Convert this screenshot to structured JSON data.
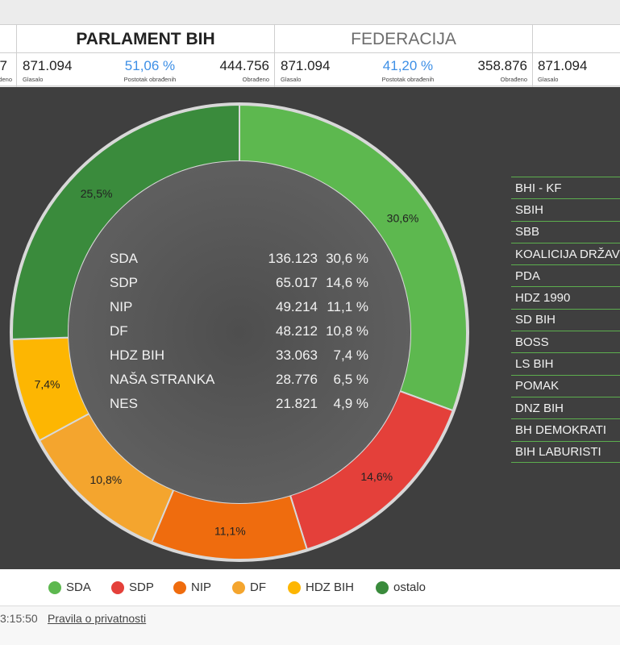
{
  "tabs": [
    {
      "label": "PARLAMENT BIH"
    },
    {
      "label": "FEDERACIJA"
    }
  ],
  "stats": {
    "left_partial": {
      "value": "7",
      "label": "deno"
    },
    "parlament": {
      "glasalo": "871.094",
      "glasalo_label": "Glasalo",
      "postotak": "51,06 %",
      "postotak_label": "Postotak obrađenih",
      "obradjeno": "444.756",
      "obradjeno_label": "Obrađeno"
    },
    "federacija": {
      "glasalo": "871.094",
      "glasalo_label": "Glasalo",
      "postotak": "41,20 %",
      "postotak_label": "Postotak obrađenih",
      "obradjeno": "358.876",
      "obradjeno_label": "Obrađeno"
    },
    "right_partial": {
      "glasalo": "871.094",
      "glasalo_label": "Glasalo"
    }
  },
  "chart_data": {
    "type": "pie",
    "variant": "donut",
    "slices": [
      {
        "name": "SDA",
        "value": 30.6,
        "label": "30,6%",
        "color": "#5db84f"
      },
      {
        "name": "SDP",
        "value": 14.6,
        "label": "14,6%",
        "color": "#e4403a"
      },
      {
        "name": "NIP",
        "value": 11.1,
        "label": "11,1%",
        "color": "#ef6c0e"
      },
      {
        "name": "DF",
        "value": 10.8,
        "label": "10,8%",
        "color": "#f4a52e"
      },
      {
        "name": "HDZ BIH",
        "value": 7.4,
        "label": "7,4%",
        "color": "#fdb602"
      },
      {
        "name": "ostalo",
        "value": 25.5,
        "label": "25,5%",
        "color": "#3a8b3c"
      }
    ],
    "legend": [
      {
        "name": "SDA",
        "color": "#5db84f"
      },
      {
        "name": "SDP",
        "color": "#e4403a"
      },
      {
        "name": "NIP",
        "color": "#ef6c0e"
      },
      {
        "name": "DF",
        "color": "#f4a52e"
      },
      {
        "name": "HDZ BIH",
        "color": "#fdb602"
      },
      {
        "name": "ostalo",
        "color": "#3a8b3c"
      }
    ],
    "legend_position": "bottom",
    "center_table": [
      {
        "party": "SDA",
        "votes": "136.123",
        "percent": "30,6 %"
      },
      {
        "party": "SDP",
        "votes": "65.017",
        "percent": "14,6 %"
      },
      {
        "party": "NIP",
        "votes": "49.214",
        "percent": "11,1 %"
      },
      {
        "party": "DF",
        "votes": "48.212",
        "percent": "10,8 %"
      },
      {
        "party": "HDZ BIH",
        "votes": "33.063",
        "percent": "7,4 %"
      },
      {
        "party": "NAŠA STRANKA",
        "votes": "28.776",
        "percent": "6,5 %"
      },
      {
        "party": "NES",
        "votes": "21.821",
        "percent": "4,9 %"
      }
    ]
  },
  "other_parties": [
    "BHI - KF",
    "SBIH",
    "SBB",
    "KOALICIJA DRŽAV",
    "PDA",
    "HDZ 1990",
    "SD BIH",
    "BOSS",
    "LS BIH",
    "POMAK",
    "DNZ BIH",
    "BH DEMOKRATI",
    "BIH LABURISTI"
  ],
  "footer": {
    "time": "3:15:50",
    "privacy_link": "Pravila o privatnosti"
  }
}
